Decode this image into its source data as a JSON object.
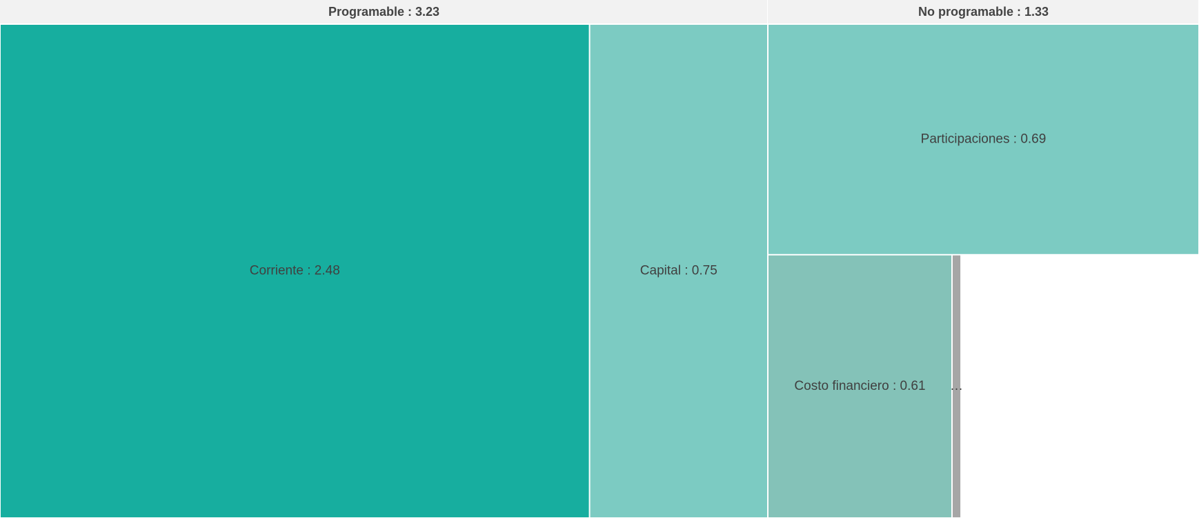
{
  "chart_data": {
    "type": "treemap",
    "groups": [
      {
        "label": "Programable : 3.23",
        "value": 3.23,
        "children": [
          {
            "label": "Corriente : 2.48",
            "value": 2.48,
            "color": "#17ae9f"
          },
          {
            "label": "Capital : 0.75",
            "value": 0.75,
            "color": "#7ccbc2"
          }
        ]
      },
      {
        "label": "No programable : 1.33",
        "value": 1.33,
        "children": [
          {
            "label": "Participaciones : 0.69",
            "value": 0.69,
            "color": "#7ccbc2"
          },
          {
            "label": "Costo financiero : 0.61",
            "value": 0.61,
            "color": "#84c2b8"
          },
          {
            "label": "…",
            "value": 0.03,
            "color": "#a6a6a6"
          }
        ]
      }
    ]
  }
}
